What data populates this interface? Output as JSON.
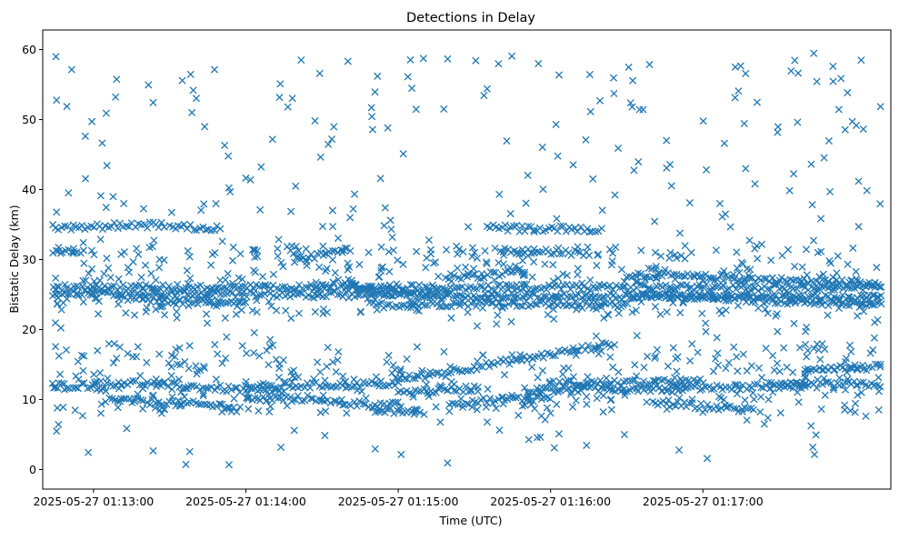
{
  "chart_data": {
    "type": "scatter",
    "title": "Detections in Delay",
    "xlabel": "Time (UTC)",
    "ylabel": "Bistatic Delay (km)",
    "x_ticks": [
      "2025-05-27 01:13:00",
      "2025-05-27 01:14:00",
      "2025-05-27 01:15:00",
      "2025-05-27 01:16:00",
      "2025-05-27 01:17:00"
    ],
    "y_ticks": [
      "0",
      "10",
      "20",
      "30",
      "40",
      "50",
      "60"
    ],
    "xlim": [
      "2025-05-27 01:12:40",
      "2025-05-27 01:18:14"
    ],
    "ylim": [
      -2.8,
      62.8
    ],
    "grid": false,
    "marker": "x",
    "marker_color": "#1f77b4",
    "tracks": [
      {
        "x": [
          "2025-05-27 01:12:44",
          "2025-05-27 01:13:28"
        ],
        "y": [
          34.6,
          35.0
        ]
      },
      {
        "x": [
          "2025-05-27 01:13:30",
          "2025-05-27 01:13:50"
        ],
        "y": [
          34.7,
          34.5
        ]
      },
      {
        "x": [
          "2025-05-27 01:12:44",
          "2025-05-27 01:12:56"
        ],
        "y": [
          31.3,
          31.0
        ]
      },
      {
        "x": [
          "2025-05-27 01:14:20",
          "2025-05-27 01:14:40"
        ],
        "y": [
          30.0,
          31.5
        ]
      },
      {
        "x": [
          "2025-05-27 01:14:40",
          "2025-05-27 01:15:20"
        ],
        "y": [
          26.0,
          25.0
        ]
      },
      {
        "x": [
          "2025-05-27 01:15:20",
          "2025-05-27 01:15:50"
        ],
        "y": [
          27.2,
          28.4
        ]
      },
      {
        "x": [
          "2025-05-27 01:15:35",
          "2025-05-27 01:16:20"
        ],
        "y": [
          34.5,
          34.3
        ]
      },
      {
        "x": [
          "2025-05-27 01:15:40",
          "2025-05-27 01:16:15"
        ],
        "y": [
          31.2,
          31.0
        ]
      },
      {
        "x": [
          "2025-05-27 01:12:44",
          "2025-05-27 01:18:10"
        ],
        "y": [
          26.0,
          26.0
        ]
      },
      {
        "x": [
          "2025-05-27 01:12:44",
          "2025-05-27 01:18:10"
        ],
        "y": [
          25.2,
          24.5
        ]
      },
      {
        "x": [
          "2025-05-27 01:13:10",
          "2025-05-27 01:14:00"
        ],
        "y": [
          24.5,
          23.5
        ]
      },
      {
        "x": [
          "2025-05-27 01:14:50",
          "2025-05-27 01:15:40"
        ],
        "y": [
          23.5,
          23.8
        ]
      },
      {
        "x": [
          "2025-05-27 01:15:40",
          "2025-05-27 01:16:30"
        ],
        "y": [
          23.7,
          23.6
        ]
      },
      {
        "x": [
          "2025-05-27 01:16:30",
          "2025-05-27 01:18:10"
        ],
        "y": [
          27.9,
          26.5
        ]
      },
      {
        "x": [
          "2025-05-27 01:16:30",
          "2025-05-27 01:18:10"
        ],
        "y": [
          25.0,
          23.5
        ]
      },
      {
        "x": [
          "2025-05-27 01:12:44",
          "2025-05-27 01:13:10"
        ],
        "y": [
          12.0,
          12.0
        ]
      },
      {
        "x": [
          "2025-05-27 01:13:10",
          "2025-05-27 01:14:15"
        ],
        "y": [
          12.5,
          11.0
        ]
      },
      {
        "x": [
          "2025-05-27 01:13:05",
          "2025-05-27 01:13:55"
        ],
        "y": [
          10.0,
          9.0
        ]
      },
      {
        "x": [
          "2025-05-27 01:14:00",
          "2025-05-27 01:15:00"
        ],
        "y": [
          11.8,
          12.3
        ]
      },
      {
        "x": [
          "2025-05-27 01:14:00",
          "2025-05-27 01:14:30"
        ],
        "y": [
          10.0,
          10.2
        ]
      },
      {
        "x": [
          "2025-05-27 01:14:30",
          "2025-05-27 01:15:00"
        ],
        "y": [
          9.6,
          9.2
        ]
      },
      {
        "x": [
          "2025-05-27 01:14:50",
          "2025-05-27 01:15:10"
        ],
        "y": [
          8.4,
          8.2
        ]
      },
      {
        "x": [
          "2025-05-27 01:15:00",
          "2025-05-27 01:16:25"
        ],
        "y": [
          12.8,
          18.0
        ]
      },
      {
        "x": [
          "2025-05-27 01:15:00",
          "2025-05-27 01:15:30"
        ],
        "y": [
          11.0,
          11.6
        ]
      },
      {
        "x": [
          "2025-05-27 01:15:20",
          "2025-05-27 01:16:00"
        ],
        "y": [
          9.6,
          10.3
        ]
      },
      {
        "x": [
          "2025-05-27 01:15:50",
          "2025-05-27 01:17:40"
        ],
        "y": [
          11.3,
          12.0
        ]
      },
      {
        "x": [
          "2025-05-27 01:16:00",
          "2025-05-27 01:17:00"
        ],
        "y": [
          12.3,
          12.5
        ]
      },
      {
        "x": [
          "2025-05-27 01:16:40",
          "2025-05-27 01:17:20"
        ],
        "y": [
          9.5,
          8.5
        ]
      },
      {
        "x": [
          "2025-05-27 01:17:40",
          "2025-05-27 01:18:10"
        ],
        "y": [
          14.5,
          14.6
        ]
      },
      {
        "x": [
          "2025-05-27 01:17:30",
          "2025-05-27 01:18:10"
        ],
        "y": [
          12.0,
          12.2
        ]
      }
    ]
  }
}
